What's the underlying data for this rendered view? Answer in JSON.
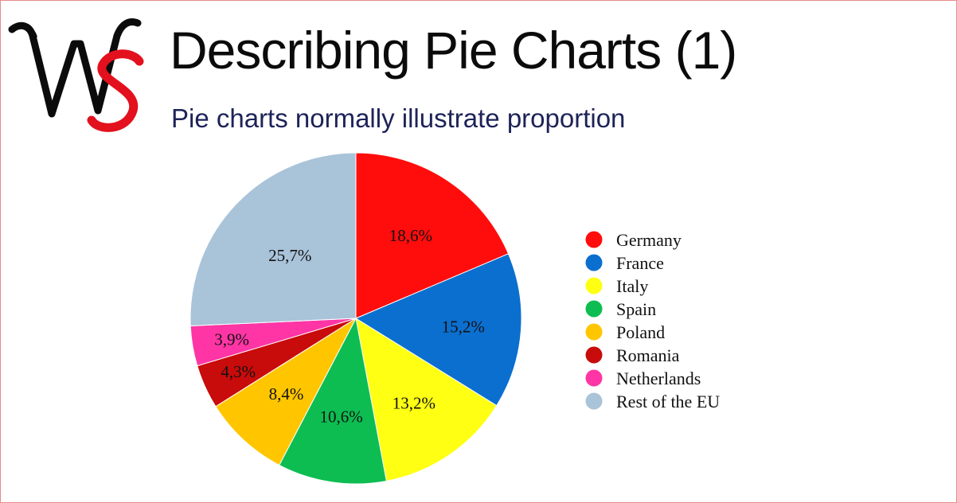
{
  "header": {
    "logo_text": "WS",
    "title": "Describing Pie Charts (1)",
    "subtitle": "Pie charts normally illustrate proportion"
  },
  "colors": {
    "frame_border": "#e88a8a",
    "logo_w": "#0b0b0b",
    "logo_s": "#e3101e",
    "subtitle": "#1d2358"
  },
  "chart_data": {
    "type": "pie",
    "title": "",
    "start_angle_deg": 0,
    "direction": "clockwise",
    "legend_position": "right",
    "slices": [
      {
        "name": "Germany",
        "value": 18.6,
        "label": "18,6%",
        "color": "#ff0d0d"
      },
      {
        "name": "France",
        "value": 15.2,
        "label": "15,2%",
        "color": "#0b6fcf"
      },
      {
        "name": "Italy",
        "value": 13.2,
        "label": "13,2%",
        "color": "#ffff14"
      },
      {
        "name": "Spain",
        "value": 10.6,
        "label": "10,6%",
        "color": "#0dbd52"
      },
      {
        "name": "Poland",
        "value": 8.4,
        "label": "8,4%",
        "color": "#ffc600"
      },
      {
        "name": "Romania",
        "value": 4.3,
        "label": "4,3%",
        "color": "#c80b0b"
      },
      {
        "name": "Netherlands",
        "value": 3.9,
        "label": "3,9%",
        "color": "#ff35a5"
      },
      {
        "name": "Rest of the EU",
        "value": 25.7,
        "label": "25,7%",
        "color": "#a9c3d9"
      }
    ]
  }
}
